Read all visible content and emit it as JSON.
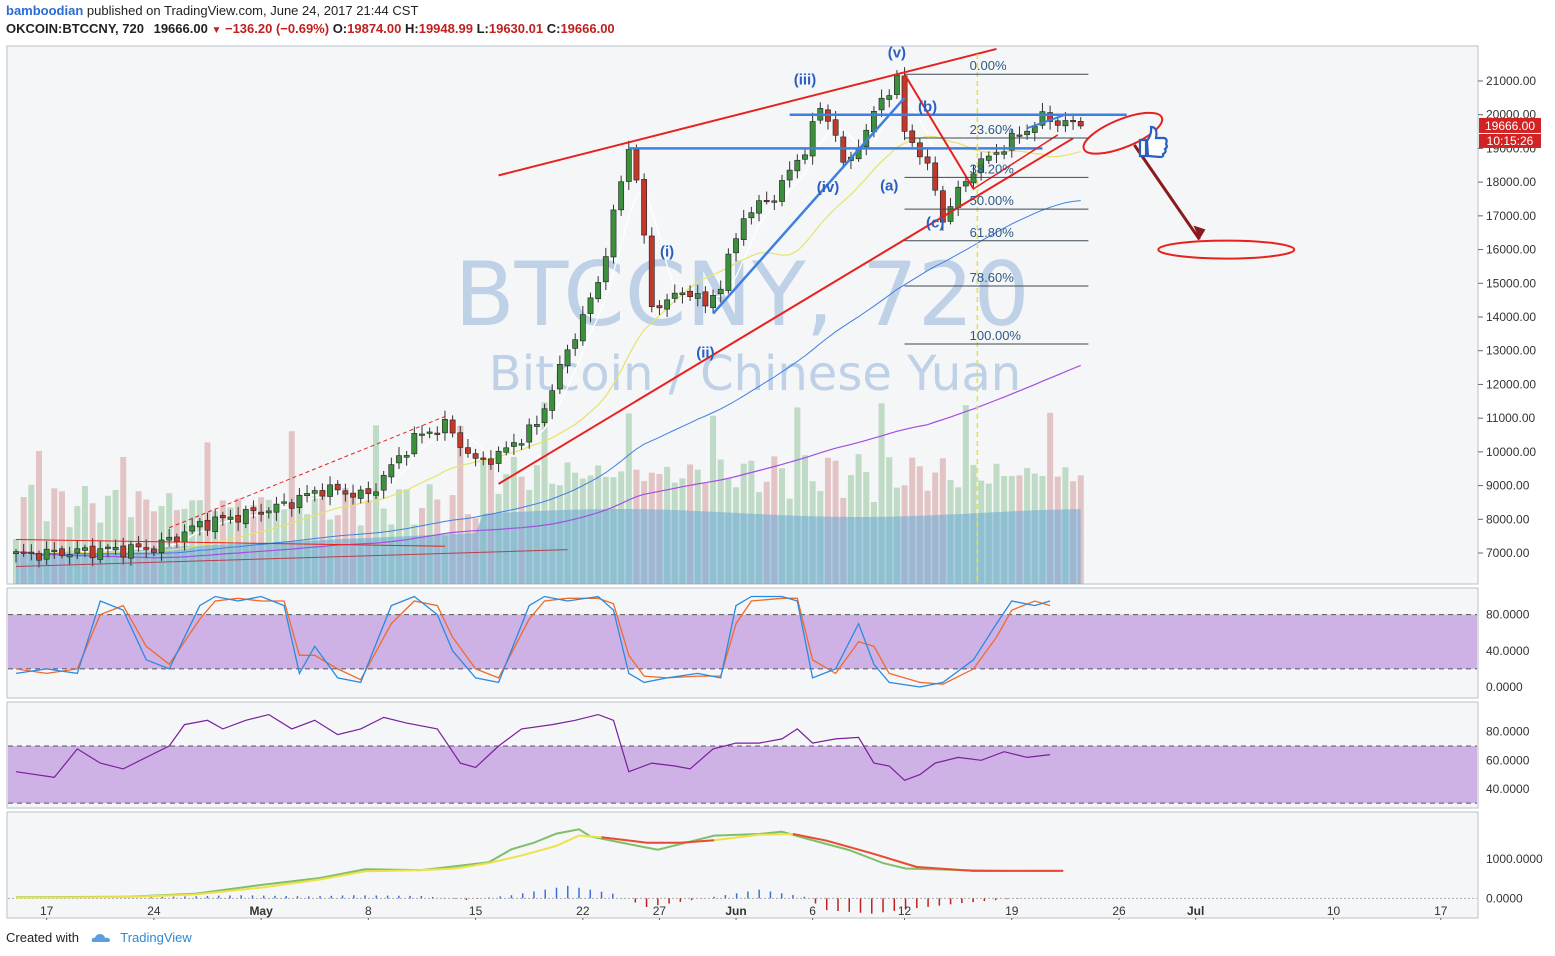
{
  "header": {
    "user": "bamboodian",
    "published": "published on TradingView.com, June 24, 2017 21:44 CST",
    "symbol": "OKCOIN:BTCCNY, 720",
    "last": "19666.00",
    "change": "−136.20 (−0.69%)",
    "o_label": "O:",
    "o": "19874.00",
    "h_label": "H:",
    "h": "19948.99",
    "l_label": "L:",
    "l": "19630.01",
    "c_label": "C:",
    "c": "19666.00"
  },
  "watermark": {
    "line1": "BTCCNY, 720",
    "line2": "Bitcoin / Chinese Yuan"
  },
  "footer": {
    "created": "Created with",
    "brand": "TradingView"
  },
  "colors": {
    "up": "#3c8f3c",
    "down": "#c0392b",
    "trend": "#e8201e",
    "wave": "#3f7fe0",
    "fib": "#2f5a85",
    "panel_fill": "#c19be0",
    "price_tag": "#d32222"
  },
  "chart_data": {
    "type": "candlestick",
    "price_axis": {
      "min": 6200,
      "max": 21800,
      "ticks": [
        "21000.00",
        "20000.00",
        "19000.00",
        "18000.00",
        "17000.00",
        "16000.00",
        "15000.00",
        "14000.00",
        "13000.00",
        "12000.00",
        "11000.00",
        "10000.00",
        "9000.00",
        "8000.00",
        "7000.00"
      ]
    },
    "price_tag": "19666.00",
    "time_tag": "10:15:26",
    "x_ticks": [
      {
        "label": "17",
        "slot": 4
      },
      {
        "label": "24",
        "slot": 18
      },
      {
        "label": "May",
        "slot": 32
      },
      {
        "label": "8",
        "slot": 46
      },
      {
        "label": "15",
        "slot": 60
      },
      {
        "label": "22",
        "slot": 74
      },
      {
        "label": "27",
        "slot": 84
      },
      {
        "label": "Jun",
        "slot": 94
      },
      {
        "label": "6",
        "slot": 104
      },
      {
        "label": "12",
        "slot": 116
      },
      {
        "label": "19",
        "slot": 130
      },
      {
        "label": "26",
        "slot": 144
      },
      {
        "label": "Jul",
        "slot": 154
      },
      {
        "label": "10",
        "slot": 172
      },
      {
        "label": "17",
        "slot": 186
      }
    ],
    "close_keys": [
      [
        0,
        6950
      ],
      [
        18,
        7150
      ],
      [
        24,
        7850
      ],
      [
        34,
        8350
      ],
      [
        40,
        8900
      ],
      [
        46,
        8700
      ],
      [
        52,
        10400
      ],
      [
        56,
        10800
      ],
      [
        60,
        9700
      ],
      [
        63,
        9900
      ],
      [
        68,
        10800
      ],
      [
        72,
        13000
      ],
      [
        76,
        15000
      ],
      [
        80,
        19000
      ],
      [
        81,
        18200
      ],
      [
        83,
        14300
      ],
      [
        86,
        14600
      ],
      [
        88,
        14800
      ],
      [
        90,
        14300
      ],
      [
        92,
        15000
      ],
      [
        95,
        17000
      ],
      [
        99,
        17600
      ],
      [
        103,
        19000
      ],
      [
        105,
        20200
      ],
      [
        107,
        19500
      ],
      [
        108,
        18400
      ],
      [
        111,
        19500
      ],
      [
        113,
        20500
      ],
      [
        115,
        21000
      ],
      [
        116,
        19500
      ],
      [
        118,
        18900
      ],
      [
        120,
        17800
      ],
      [
        121,
        16900
      ],
      [
        123,
        17700
      ],
      [
        125,
        18400
      ],
      [
        128,
        18900
      ],
      [
        131,
        19400
      ],
      [
        134,
        19900
      ],
      [
        139,
        19666
      ]
    ],
    "fib_levels": [
      {
        "label": "0.00%",
        "value": 21200
      },
      {
        "label": "23.60%",
        "value": 19310
      },
      {
        "label": "38.20%",
        "value": 18140
      },
      {
        "label": "50.00%",
        "value": 17200
      },
      {
        "label": "61.80%",
        "value": 16260
      },
      {
        "label": "78.60%",
        "value": 14920
      },
      {
        "label": "100.00%",
        "value": 13200
      }
    ],
    "wave_labels": [
      {
        "label": "(iii)",
        "slot": 103,
        "value": 20900
      },
      {
        "label": "(v)",
        "slot": 115,
        "value": 21700
      },
      {
        "label": "(i)",
        "slot": 85,
        "value": 15800
      },
      {
        "label": "(ii)",
        "slot": 90,
        "value": 12800
      },
      {
        "label": "(iv)",
        "slot": 106,
        "value": 17700
      },
      {
        "label": "(a)",
        "slot": 114,
        "value": 17750
      },
      {
        "label": "(b)",
        "slot": 119,
        "value": 20100
      },
      {
        "label": "(c)",
        "slot": 120,
        "value": 16650
      }
    ],
    "stoch": {
      "ticks": [
        "80.0000",
        "40.0000",
        "0.0000"
      ],
      "min": -10,
      "max": 105,
      "k": [
        [
          0,
          15
        ],
        [
          4,
          20
        ],
        [
          8,
          15
        ],
        [
          11,
          95
        ],
        [
          14,
          85
        ],
        [
          17,
          30
        ],
        [
          20,
          20
        ],
        [
          24,
          90
        ],
        [
          26,
          100
        ],
        [
          29,
          95
        ],
        [
          32,
          100
        ],
        [
          35,
          90
        ],
        [
          37,
          15
        ],
        [
          39,
          45
        ],
        [
          42,
          10
        ],
        [
          45,
          5
        ],
        [
          49,
          90
        ],
        [
          52,
          100
        ],
        [
          55,
          80
        ],
        [
          57,
          40
        ],
        [
          60,
          10
        ],
        [
          63,
          5
        ],
        [
          67,
          90
        ],
        [
          69,
          100
        ],
        [
          72,
          95
        ],
        [
          76,
          100
        ],
        [
          78,
          85
        ],
        [
          80,
          15
        ],
        [
          82,
          5
        ],
        [
          85,
          10
        ],
        [
          89,
          15
        ],
        [
          92,
          10
        ],
        [
          94,
          90
        ],
        [
          96,
          100
        ],
        [
          100,
          100
        ],
        [
          102,
          95
        ],
        [
          104,
          10
        ],
        [
          107,
          20
        ],
        [
          110,
          70
        ],
        [
          112,
          25
        ],
        [
          114,
          5
        ],
        [
          118,
          0
        ],
        [
          121,
          5
        ],
        [
          125,
          30
        ],
        [
          128,
          70
        ],
        [
          130,
          95
        ],
        [
          133,
          90
        ],
        [
          135,
          95
        ]
      ],
      "d": [
        [
          0,
          20
        ],
        [
          4,
          15
        ],
        [
          8,
          20
        ],
        [
          11,
          80
        ],
        [
          14,
          90
        ],
        [
          17,
          45
        ],
        [
          20,
          25
        ],
        [
          24,
          75
        ],
        [
          26,
          95
        ],
        [
          29,
          98
        ],
        [
          32,
          95
        ],
        [
          35,
          95
        ],
        [
          37,
          35
        ],
        [
          39,
          35
        ],
        [
          42,
          20
        ],
        [
          45,
          8
        ],
        [
          49,
          70
        ],
        [
          52,
          95
        ],
        [
          55,
          90
        ],
        [
          57,
          55
        ],
        [
          60,
          20
        ],
        [
          63,
          10
        ],
        [
          67,
          75
        ],
        [
          69,
          95
        ],
        [
          72,
          98
        ],
        [
          76,
          98
        ],
        [
          78,
          92
        ],
        [
          80,
          35
        ],
        [
          82,
          12
        ],
        [
          85,
          10
        ],
        [
          89,
          12
        ],
        [
          92,
          12
        ],
        [
          94,
          70
        ],
        [
          96,
          95
        ],
        [
          100,
          98
        ],
        [
          102,
          98
        ],
        [
          104,
          30
        ],
        [
          107,
          15
        ],
        [
          110,
          50
        ],
        [
          112,
          45
        ],
        [
          114,
          15
        ],
        [
          118,
          5
        ],
        [
          121,
          3
        ],
        [
          125,
          20
        ],
        [
          128,
          55
        ],
        [
          130,
          85
        ],
        [
          133,
          95
        ],
        [
          135,
          90
        ]
      ]
    },
    "rsi": {
      "ticks": [
        "80.0000",
        "60.0000",
        "40.0000"
      ],
      "min": 28,
      "max": 98,
      "values": [
        [
          0,
          52
        ],
        [
          5,
          48
        ],
        [
          8,
          68
        ],
        [
          11,
          58
        ],
        [
          14,
          54
        ],
        [
          17,
          62
        ],
        [
          20,
          70
        ],
        [
          22,
          85
        ],
        [
          25,
          88
        ],
        [
          27,
          82
        ],
        [
          30,
          88
        ],
        [
          33,
          92
        ],
        [
          36,
          82
        ],
        [
          39,
          88
        ],
        [
          42,
          78
        ],
        [
          45,
          82
        ],
        [
          48,
          90
        ],
        [
          51,
          86
        ],
        [
          55,
          82
        ],
        [
          58,
          58
        ],
        [
          60,
          55
        ],
        [
          63,
          70
        ],
        [
          66,
          82
        ],
        [
          70,
          85
        ],
        [
          73,
          88
        ],
        [
          76,
          92
        ],
        [
          78,
          88
        ],
        [
          80,
          52
        ],
        [
          83,
          58
        ],
        [
          86,
          56
        ],
        [
          88,
          54
        ],
        [
          91,
          68
        ],
        [
          94,
          72
        ],
        [
          97,
          72
        ],
        [
          100,
          75
        ],
        [
          102,
          82
        ],
        [
          104,
          72
        ],
        [
          107,
          75
        ],
        [
          110,
          76
        ],
        [
          112,
          58
        ],
        [
          114,
          56
        ],
        [
          116,
          46
        ],
        [
          118,
          50
        ],
        [
          120,
          58
        ],
        [
          123,
          62
        ],
        [
          126,
          60
        ],
        [
          129,
          66
        ],
        [
          132,
          62
        ],
        [
          135,
          64
        ]
      ]
    },
    "macd": {
      "ticks": [
        "1000.0000",
        "0.0000"
      ],
      "min": -450,
      "max": 2100,
      "macd": [
        [
          0,
          30
        ],
        [
          10,
          40
        ],
        [
          16,
          120
        ],
        [
          22,
          350
        ],
        [
          27,
          520
        ],
        [
          31,
          740
        ],
        [
          36,
          720
        ],
        [
          39,
          820
        ],
        [
          42,
          920
        ],
        [
          44,
          1250
        ],
        [
          46,
          1420
        ],
        [
          48,
          1650
        ],
        [
          50,
          1760
        ],
        [
          51,
          1580
        ],
        [
          55,
          1350
        ],
        [
          57,
          1240
        ],
        [
          62,
          1600
        ],
        [
          66,
          1640
        ],
        [
          68,
          1700
        ],
        [
          70,
          1540
        ],
        [
          74,
          1230
        ],
        [
          77,
          900
        ],
        [
          79,
          760
        ],
        [
          84,
          720
        ],
        [
          88,
          700
        ],
        [
          93,
          705
        ]
      ],
      "signal": [
        [
          0,
          20
        ],
        [
          10,
          35
        ],
        [
          16,
          100
        ],
        [
          22,
          280
        ],
        [
          27,
          480
        ],
        [
          31,
          690
        ],
        [
          36,
          720
        ],
        [
          39,
          760
        ],
        [
          42,
          900
        ],
        [
          45,
          1100
        ],
        [
          48,
          1340
        ],
        [
          50,
          1600
        ],
        [
          52,
          1560
        ],
        [
          56,
          1420
        ],
        [
          59,
          1420
        ],
        [
          62,
          1480
        ],
        [
          66,
          1620
        ],
        [
          69,
          1640
        ],
        [
          72,
          1470
        ],
        [
          76,
          1150
        ],
        [
          80,
          800
        ],
        [
          85,
          700
        ],
        [
          89,
          700
        ],
        [
          93,
          700
        ]
      ],
      "hist": [
        [
          12,
          30
        ],
        [
          20,
          80
        ],
        [
          26,
          50
        ],
        [
          30,
          80
        ],
        [
          36,
          60
        ],
        [
          40,
          -40
        ],
        [
          44,
          80
        ],
        [
          49,
          320
        ],
        [
          53,
          120
        ],
        [
          56,
          -220
        ],
        [
          62,
          40
        ],
        [
          66,
          220
        ],
        [
          70,
          40
        ],
        [
          72,
          -300
        ],
        [
          76,
          -390
        ],
        [
          80,
          -250
        ],
        [
          84,
          -120
        ],
        [
          88,
          -20
        ],
        [
          92,
          20
        ]
      ]
    }
  }
}
